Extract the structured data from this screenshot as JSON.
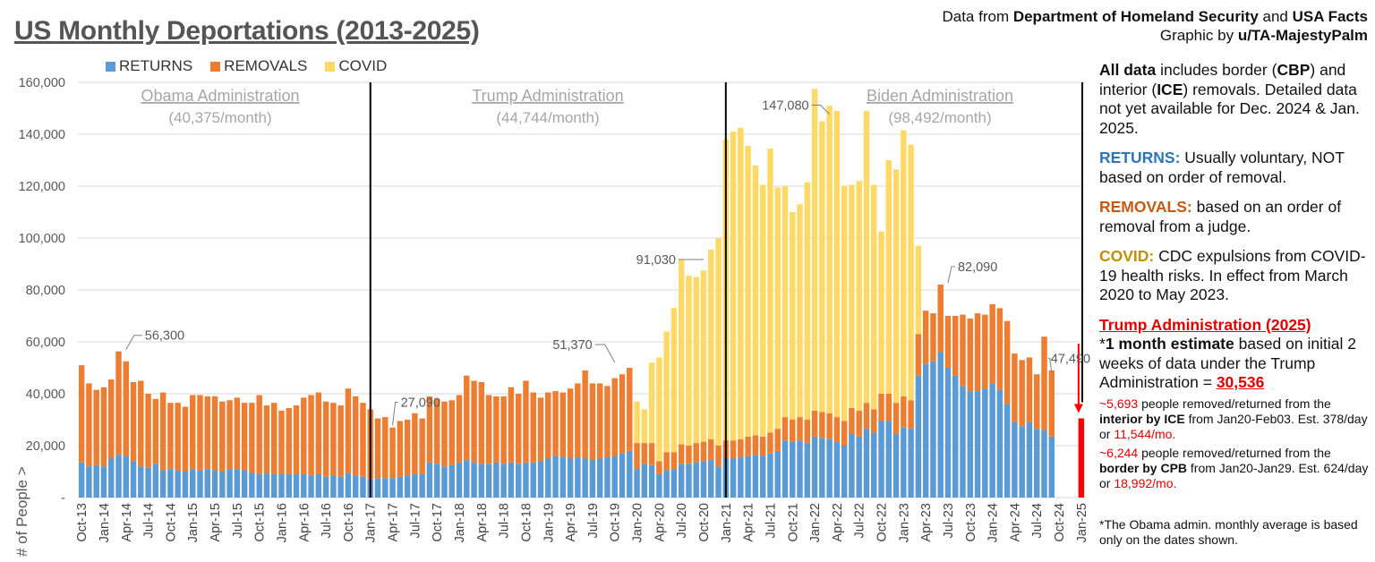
{
  "title": "US Monthly Deportations (2013-2025)",
  "source": {
    "line1_prefix": "Data from ",
    "line1_dhs": "Department of Homeland Security",
    "line1_mid": " and ",
    "line1_usa": "USA Facts",
    "line2_prefix": "Graphic by ",
    "line2_author": "u/TA-MajestyPalm"
  },
  "notes": {
    "all_bold": "All data",
    "all_a": " includes border (",
    "all_cbp": "CBP",
    "all_b": ") and interior (",
    "all_ice": "ICE",
    "all_c": ") removals. Detailed data not yet available for Dec. 2024 & Jan. 2025.",
    "returns_label": "RETURNS:",
    "returns_text": " Usually voluntary, NOT based on order of removal.",
    "removals_label": "REMOVALS:",
    "removals_text": " based on an order of removal from a judge.",
    "covid_label": "COVID:",
    "covid_text": " CDC expulsions from COVID-19 health risks. In effect from March 2020 to May 2023.",
    "trump_head": "Trump Administration (2025)",
    "est_a": "*",
    "est_bold": "1 month estimate",
    "est_b": " based on initial 2 weeks of data under the Trump Administration = ",
    "est_value": "30,536",
    "ice_num": "~5,693",
    "ice_a": " people removed/returned from the ",
    "ice_bold": "interior by ICE",
    "ice_b": " from Jan20-Feb03. Est. 378/day or ",
    "ice_mo": "11,544/mo.",
    "cbp_num": "~6,244",
    "cbp_a": " people removed/returned from the ",
    "cbp_bold": "border by CPB",
    "cbp_b": " from Jan20-Jan29. Est. 624/day or ",
    "cbp_mo": "18,992/mo.",
    "footnote": "*The Obama admin. monthly average is based only on the dates shown."
  },
  "chart_data": {
    "type": "bar",
    "stacked": true,
    "ylabel": "# of People >",
    "ylim": [
      0,
      160000
    ],
    "yticks": [
      0,
      20000,
      40000,
      60000,
      80000,
      100000,
      120000,
      140000,
      160000
    ],
    "ytick_labels": [
      "-",
      "20,000",
      "40,000",
      "60,000",
      "80,000",
      "100,000",
      "120,000",
      "140,000",
      "160,000"
    ],
    "x_start": "Oct-13",
    "xtick_labels": [
      "Oct-13",
      "Jan-14",
      "Apr-14",
      "Jul-14",
      "Oct-14",
      "Jan-15",
      "Apr-15",
      "Jul-15",
      "Oct-15",
      "Jan-16",
      "Apr-16",
      "Jul-16",
      "Oct-16",
      "Jan-17",
      "Apr-17",
      "Jul-17",
      "Oct-17",
      "Jan-18",
      "Apr-18",
      "Jul-18",
      "Oct-18",
      "Jan-19",
      "Apr-19",
      "Jul-19",
      "Oct-19",
      "Jan-20",
      "Apr-20",
      "Jul-20",
      "Oct-20",
      "Jan-21",
      "Apr-21",
      "Jul-21",
      "Oct-21",
      "Jan-22",
      "Apr-22",
      "Jul-22",
      "Oct-22",
      "Jan-23",
      "Apr-23",
      "Jul-23",
      "Oct-23",
      "Jan-24",
      "Apr-24",
      "Jul-24",
      "Oct-24",
      "Jan-25"
    ],
    "grid": true,
    "legend_position": "top-left",
    "colors": {
      "returns": "#5b9bd5",
      "removals": "#ed7d31",
      "covid": "#ffd966",
      "trump2025": "#ff0000",
      "divider": "#000000"
    },
    "series": [
      {
        "name": "RETURNS",
        "values": [
          13500,
          12000,
          12500,
          12000,
          15000,
          16500,
          16000,
          14000,
          12000,
          11500,
          13000,
          10500,
          11000,
          10500,
          10000,
          11000,
          10500,
          11000,
          10500,
          10000,
          11000,
          11000,
          10500,
          9500,
          9000,
          9500,
          9000,
          9000,
          9000,
          9000,
          9000,
          8500,
          9000,
          8000,
          8500,
          8000,
          9500,
          8500,
          8000,
          7000,
          7500,
          7500,
          7500,
          8000,
          8500,
          9000,
          9000,
          13500,
          13000,
          12000,
          12500,
          13500,
          14500,
          13500,
          13000,
          13000,
          13500,
          13000,
          13500,
          13000,
          13500,
          13500,
          14000,
          15000,
          16000,
          15500,
          15000,
          15500,
          15000,
          14500,
          15000,
          15500,
          16000,
          17000,
          18000,
          11000,
          13000,
          12500,
          9000,
          10500,
          11000,
          13000,
          13000,
          13500,
          14000,
          14500,
          12000,
          15000,
          15000,
          15500,
          16000,
          16500,
          16000,
          17000,
          18000,
          22000,
          21500,
          22000,
          21000,
          23500,
          23000,
          22500,
          21500,
          20000,
          24500,
          23500,
          26500,
          25000,
          29500,
          29500,
          24500,
          27000,
          26500,
          47000,
          51500,
          52500,
          56000,
          50000,
          47000,
          43000,
          41000,
          41000,
          42000,
          44000,
          41500,
          36000,
          29000,
          27500,
          29000,
          26500,
          26000,
          23500
        ]
      },
      {
        "name": "REMOVALS",
        "values": [
          37500,
          32000,
          29000,
          30500,
          30500,
          39800,
          36500,
          30500,
          33000,
          28500,
          25000,
          30000,
          25500,
          26000,
          25000,
          28500,
          29000,
          28000,
          28500,
          27000,
          26500,
          27500,
          26000,
          27000,
          30500,
          26000,
          27500,
          24500,
          25500,
          26500,
          29500,
          31000,
          31500,
          29000,
          28000,
          27500,
          32500,
          30500,
          28500,
          27000,
          23000,
          23500,
          19500,
          21500,
          21500,
          23500,
          21500,
          25500,
          25000,
          25000,
          25000,
          26000,
          32500,
          31500,
          31500,
          26500,
          25500,
          26000,
          29000,
          27000,
          31500,
          27000,
          24500,
          25500,
          25000,
          25000,
          27000,
          28500,
          34000,
          29500,
          29000,
          27500,
          30000,
          30500,
          32000,
          10000,
          8000,
          8500,
          5000,
          7000,
          6500,
          7500,
          7000,
          7500,
          7500,
          8000,
          8000,
          7000,
          7000,
          7000,
          7500,
          7500,
          7500,
          8000,
          8500,
          9000,
          8500,
          9000,
          9000,
          10000,
          10000,
          10000,
          9500,
          9500,
          10000,
          10000,
          10000,
          9000,
          10500,
          10500,
          12000,
          12000,
          11000,
          16000,
          20500,
          18500,
          26090,
          20000,
          23000,
          27500,
          28000,
          30000,
          28500,
          30500,
          31500,
          32000,
          26500,
          25500,
          25000,
          21000,
          36000,
          25500
        ]
      },
      {
        "name": "COVID",
        "values": [
          0,
          0,
          0,
          0,
          0,
          0,
          0,
          0,
          0,
          0,
          0,
          0,
          0,
          0,
          0,
          0,
          0,
          0,
          0,
          0,
          0,
          0,
          0,
          0,
          0,
          0,
          0,
          0,
          0,
          0,
          0,
          0,
          0,
          0,
          0,
          0,
          0,
          0,
          0,
          0,
          0,
          0,
          0,
          0,
          0,
          0,
          0,
          0,
          0,
          0,
          0,
          0,
          0,
          0,
          0,
          0,
          0,
          0,
          0,
          0,
          0,
          0,
          0,
          0,
          0,
          0,
          0,
          0,
          0,
          0,
          0,
          0,
          0,
          0,
          0,
          16000,
          13000,
          31000,
          40000,
          46500,
          55500,
          71000,
          65500,
          64000,
          66000,
          73000,
          80000,
          116000,
          119000,
          120000,
          112000,
          104000,
          97000,
          109500,
          93000,
          89000,
          80000,
          82000,
          91500,
          124000,
          112000,
          118500,
          118000,
          90500,
          86000,
          88500,
          112500,
          86500,
          62500,
          90000,
          90000,
          102500,
          98500,
          34000,
          0,
          0,
          0,
          0,
          0,
          0,
          0,
          0,
          0,
          0,
          0,
          0,
          0,
          0,
          0,
          0,
          0
        ]
      },
      {
        "name": "Trump Administration (2025)",
        "month": "Jan-25",
        "value": 30536
      }
    ],
    "dividers_after_month": [
      "Jan-17",
      "Jan-21",
      "Jan-25"
    ],
    "admins": [
      {
        "name": "Obama Administration",
        "avg": "(40,375/month)"
      },
      {
        "name": "Trump Administration",
        "avg": "(44,744/month)"
      },
      {
        "name": "Biden Administration",
        "avg": "(98,492/month)"
      }
    ],
    "annotations": [
      {
        "label": "56,300",
        "month_index": 6,
        "value": 56300
      },
      {
        "label": "27,090",
        "month_index": 42,
        "value": 27090
      },
      {
        "label": "51,370",
        "month_index": 72,
        "value": 51370
      },
      {
        "label": "91,030",
        "month_index": 84,
        "value": 91030
      },
      {
        "label": "147,080",
        "month_index": 101,
        "value": 147080
      },
      {
        "label": "82,090",
        "month_index": 117,
        "value": 82090
      },
      {
        "label": "47,490",
        "month_index": 131,
        "value": 47490
      }
    ]
  }
}
